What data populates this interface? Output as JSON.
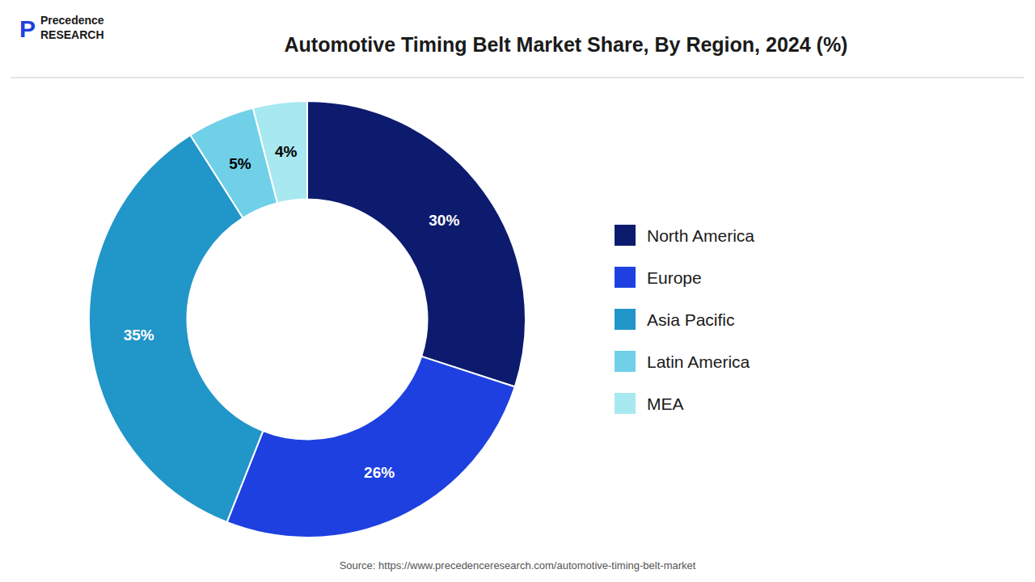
{
  "chart_data": {
    "type": "donut",
    "title": "Automotive Timing Belt Market Share, By Region, 2024 (%)",
    "categories": [
      "North America",
      "Europe",
      "Asia Pacific",
      "Latin America",
      "MEA"
    ],
    "values": [
      30,
      26,
      35,
      5,
      4
    ],
    "value_labels": [
      "30%",
      "26%",
      "35%",
      "5%",
      "4%"
    ],
    "colors": [
      "#0d1b6e",
      "#1e40e0",
      "#2196c8",
      "#70d0e8",
      "#a8e8f0"
    ],
    "data_labels": true,
    "legend": "right",
    "annotations": [
      "P",
      "Precedence\nRESEARCH",
      "Source: https://www.precedenceresearch.com/automotive-timing-belt-market"
    ]
  }
}
